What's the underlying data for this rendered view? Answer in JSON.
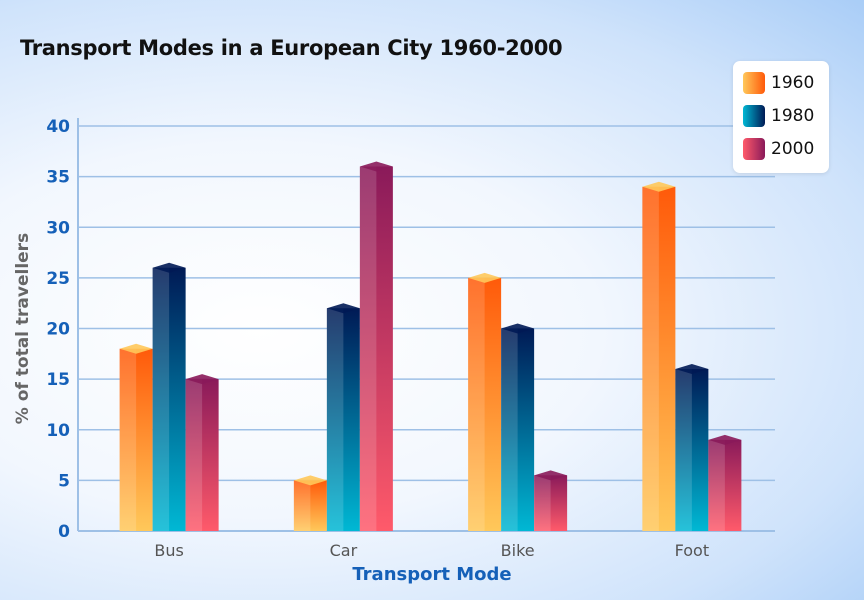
{
  "chart_data": {
    "type": "bar",
    "title": "Transport Modes in a European City 1960-2000",
    "xlabel": "Transport Mode",
    "ylabel": "% of total travellers",
    "ylim": [
      0,
      40
    ],
    "yticks": [
      0,
      5,
      10,
      15,
      20,
      25,
      30,
      35,
      40
    ],
    "grid": true,
    "legend_placement": "top-right",
    "categories": [
      "Bus",
      "Car",
      "Bike",
      "Foot"
    ],
    "series": [
      {
        "name": "1960",
        "values": [
          18,
          5,
          25,
          34
        ],
        "colors": [
          "#ffc85a",
          "#ff5a0a"
        ]
      },
      {
        "name": "1980",
        "values": [
          26,
          22,
          20,
          16
        ],
        "colors": [
          "#00b8d4",
          "#001a55"
        ]
      },
      {
        "name": "2000",
        "values": [
          15,
          36,
          5.5,
          9
        ],
        "colors": [
          "#ff5a6a",
          "#8a1a5a"
        ]
      }
    ],
    "colors": {
      "axis_text": "#1560b8",
      "grid": "#9ec0e6",
      "title": "#111111"
    }
  }
}
